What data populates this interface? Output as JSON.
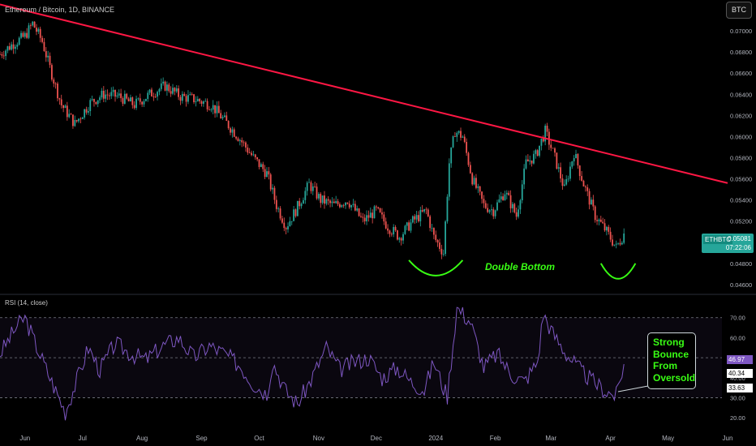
{
  "header": {
    "title": "Ethereum / Bitcoin, 1D, BINANCE",
    "currency_button": "BTC"
  },
  "price_tag": {
    "symbol": "ETHBTC",
    "last": "0.05081",
    "countdown": "07:22:06"
  },
  "rsi_panel": {
    "title": "RSI (14, close)",
    "tags": {
      "rsi": "46.97",
      "ma": "40.34",
      "low": "33.63"
    },
    "tag_colors": {
      "rsi": "#7e57c2",
      "ma": "#ffffff",
      "low": "#ffffff"
    }
  },
  "annotations": {
    "double_bottom": "Double Bottom",
    "bounce": "Strong\nBounce\nFrom\nOversold"
  },
  "colors": {
    "up": "#26a69a",
    "down": "#ef5350",
    "trendline": "#ff1744",
    "rsi_line": "#7e57c2",
    "annotation": "#39ff14",
    "background": "#000000"
  },
  "chart_data": [
    {
      "type": "candlestick",
      "title": "Ethereum / Bitcoin, 1D, BINANCE",
      "x_ticks": [
        "Jun",
        "Jul",
        "Aug",
        "Sep",
        "Oct",
        "Nov",
        "Dec",
        "2024",
        "Feb",
        "Mar",
        "Apr",
        "May",
        "Jun"
      ],
      "y_ticks": [
        "0.07000",
        "0.06800",
        "0.06600",
        "0.06400",
        "0.06200",
        "0.06000",
        "0.05800",
        "0.05600",
        "0.05400",
        "0.05200",
        "0.05000",
        "0.04800",
        "0.04600"
      ],
      "ylim": [
        0.0453,
        0.072
      ],
      "x": [
        "2023-05-19",
        "2023-05-26",
        "2023-06-01",
        "2023-06-05",
        "2023-06-10",
        "2023-06-14",
        "2023-06-20",
        "2023-06-27",
        "2023-07-05",
        "2023-07-12",
        "2023-07-20",
        "2023-07-28",
        "2023-08-05",
        "2023-08-13",
        "2023-08-21",
        "2023-08-29",
        "2023-09-06",
        "2023-09-13",
        "2023-09-20",
        "2023-09-28",
        "2023-10-05",
        "2023-10-10",
        "2023-10-15",
        "2023-10-20",
        "2023-10-27",
        "2023-11-02",
        "2023-11-09",
        "2023-11-16",
        "2023-11-24",
        "2023-12-01",
        "2023-12-07",
        "2023-12-13",
        "2023-12-20",
        "2023-12-27",
        "2023-12-31",
        "2024-01-05",
        "2024-01-08",
        "2024-01-11",
        "2024-01-15",
        "2024-01-20",
        "2024-01-26",
        "2024-01-31",
        "2024-02-06",
        "2024-02-12",
        "2024-02-17",
        "2024-02-22",
        "2024-02-27",
        "2024-03-03",
        "2024-03-08",
        "2024-03-13",
        "2024-03-18",
        "2024-03-24",
        "2024-03-30",
        "2024-04-04",
        "2024-04-08"
      ],
      "close": [
        0.0678,
        0.0688,
        0.0695,
        0.0707,
        0.069,
        0.0665,
        0.063,
        0.0612,
        0.0632,
        0.064,
        0.0638,
        0.063,
        0.064,
        0.0648,
        0.0638,
        0.0635,
        0.063,
        0.0615,
        0.06,
        0.058,
        0.0565,
        0.0535,
        0.0515,
        0.053,
        0.0555,
        0.054,
        0.0535,
        0.054,
        0.052,
        0.053,
        0.0515,
        0.0505,
        0.052,
        0.053,
        0.0505,
        0.049,
        0.0575,
        0.0605,
        0.06,
        0.056,
        0.0535,
        0.053,
        0.0548,
        0.0525,
        0.0575,
        0.0582,
        0.0605,
        0.058,
        0.055,
        0.0585,
        0.0555,
        0.0525,
        0.051,
        0.0495,
        0.0508
      ],
      "trendline": {
        "from": [
          "2023-05-19",
          0.0725
        ],
        "to": [
          "2024-06-01",
          0.0556
        ]
      }
    },
    {
      "type": "line",
      "title": "RSI (14, close)",
      "y_ticks": [
        "70.00",
        "60.00",
        "50.00",
        "40.00",
        "30.00",
        "20.00"
      ],
      "ylim": [
        16,
        78
      ],
      "bands": [
        70,
        50,
        30
      ],
      "x": [
        "2023-05-19",
        "2023-05-28",
        "2023-06-01",
        "2023-06-06",
        "2023-06-14",
        "2023-06-22",
        "2023-06-27",
        "2023-07-04",
        "2023-07-10",
        "2023-07-18",
        "2023-07-26",
        "2023-08-03",
        "2023-08-12",
        "2023-08-20",
        "2023-08-28",
        "2023-09-05",
        "2023-09-13",
        "2023-09-21",
        "2023-09-28",
        "2023-10-05",
        "2023-10-08",
        "2023-10-15",
        "2023-10-21",
        "2023-10-28",
        "2023-11-05",
        "2023-11-12",
        "2023-11-20",
        "2023-11-27",
        "2023-12-04",
        "2023-12-12",
        "2023-12-19",
        "2023-12-26",
        "2023-12-31",
        "2024-01-05",
        "2024-01-07",
        "2024-01-12",
        "2024-01-19",
        "2024-01-26",
        "2024-02-02",
        "2024-02-09",
        "2024-02-16",
        "2024-02-23",
        "2024-02-26",
        "2024-03-02",
        "2024-03-09",
        "2024-03-16",
        "2024-03-23",
        "2024-03-30",
        "2024-04-04",
        "2024-04-08"
      ],
      "y": [
        52,
        66,
        70,
        58,
        40,
        23,
        36,
        55,
        44,
        57,
        52,
        49,
        56,
        60,
        50,
        56,
        52,
        46,
        37,
        32,
        48,
        33,
        27,
        39,
        55,
        44,
        48,
        50,
        40,
        45,
        38,
        34,
        48,
        35,
        31,
        75,
        68,
        45,
        52,
        42,
        38,
        48,
        72,
        62,
        52,
        44,
        38,
        33,
        31,
        47
      ],
      "markers": {
        "rsi": 46.97,
        "ma": 40.34,
        "low": 33.63
      }
    }
  ]
}
